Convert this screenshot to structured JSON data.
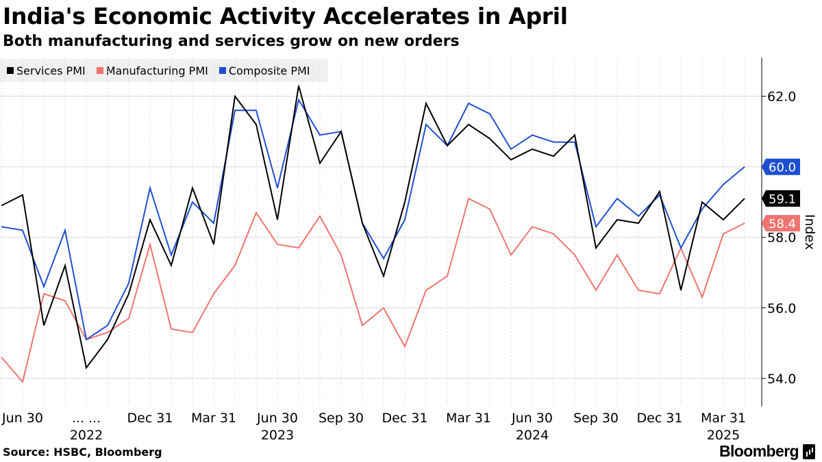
{
  "header": {
    "title": "India's Economic Activity Accelerates in April",
    "subtitle": "Both manufacturing and services grow on new orders"
  },
  "footer": {
    "source": "Source: HSBC, Bloomberg",
    "brand": "Bloomberg"
  },
  "colors": {
    "services": "#000000",
    "manufacturing": "#f07470",
    "composite": "#1f4fd1",
    "grid": "#d9d9d9"
  },
  "chart_data": {
    "type": "line",
    "title": "India's Economic Activity Accelerates in April",
    "subtitle": "Both manufacturing and services grow on new orders",
    "ylabel": "Index",
    "xlabel": "",
    "ylim": [
      53.2,
      63.1
    ],
    "yticks": [
      54.0,
      56.0,
      58.0,
      60.0,
      62.0
    ],
    "ytick_labels": [
      "54.0",
      "56.0",
      "58.0",
      "60.0",
      "62.0"
    ],
    "x_start_month_offset": 0,
    "xticks": [
      {
        "index": 1,
        "label": "Jun 30"
      },
      {
        "index": 4,
        "label": "... ..."
      },
      {
        "index": 7,
        "label": "Dec 31"
      },
      {
        "index": 10,
        "label": "Mar 31"
      },
      {
        "index": 13,
        "label": "Jun 30"
      },
      {
        "index": 16,
        "label": "Sep 30"
      },
      {
        "index": 19,
        "label": "Dec 31"
      },
      {
        "index": 22,
        "label": "Mar 31"
      },
      {
        "index": 25,
        "label": "Jun 30"
      },
      {
        "index": 28,
        "label": "Sep 30"
      },
      {
        "index": 31,
        "label": "Dec 31"
      },
      {
        "index": 34,
        "label": "Mar 31"
      }
    ],
    "year_labels": [
      {
        "index": 4,
        "label": "2022"
      },
      {
        "index": 13,
        "label": "2023"
      },
      {
        "index": 25,
        "label": "2024"
      },
      {
        "index": 34,
        "label": "2025"
      }
    ],
    "series": [
      {
        "name": "Services PMI",
        "key": "services",
        "end_label": "59.1",
        "values": [
          58.9,
          59.2,
          55.5,
          57.2,
          54.3,
          55.1,
          56.4,
          58.5,
          57.2,
          59.4,
          57.8,
          62.0,
          61.2,
          58.5,
          62.3,
          60.1,
          61.0,
          58.4,
          56.9,
          59.0,
          61.8,
          60.6,
          61.2,
          60.8,
          60.2,
          60.5,
          60.3,
          60.9,
          57.7,
          58.5,
          58.4,
          59.3,
          56.5,
          59.0,
          58.5,
          59.1
        ]
      },
      {
        "name": "Manufacturing PMI",
        "key": "manufacturing",
        "end_label": "58.4",
        "values": [
          54.6,
          53.9,
          56.4,
          56.2,
          55.1,
          55.3,
          55.7,
          57.8,
          55.4,
          55.3,
          56.4,
          57.2,
          58.7,
          57.8,
          57.7,
          58.6,
          57.5,
          55.5,
          56.0,
          54.9,
          56.5,
          56.9,
          59.1,
          58.8,
          57.5,
          58.3,
          58.1,
          57.5,
          56.5,
          57.5,
          56.5,
          56.4,
          57.7,
          56.3,
          58.1,
          58.4
        ]
      },
      {
        "name": "Composite PMI",
        "key": "composite",
        "end_label": "60.0",
        "values": [
          58.3,
          58.2,
          56.6,
          58.2,
          55.1,
          55.5,
          56.7,
          59.4,
          57.5,
          59.0,
          58.4,
          61.6,
          61.6,
          59.4,
          61.9,
          60.9,
          61.0,
          58.4,
          57.4,
          58.5,
          61.2,
          60.6,
          61.8,
          61.5,
          60.5,
          60.9,
          60.7,
          60.7,
          58.3,
          59.1,
          58.6,
          59.2,
          57.7,
          58.8,
          59.5,
          60.0
        ]
      }
    ]
  }
}
